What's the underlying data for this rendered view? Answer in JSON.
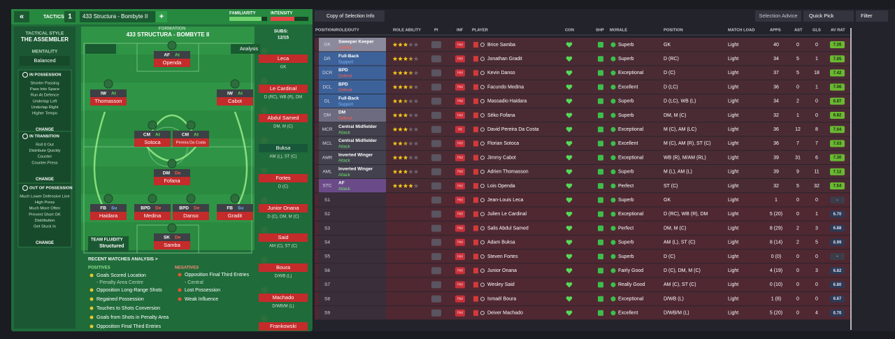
{
  "tactics_bar": {
    "collapse": "«",
    "slot": "1",
    "label": "TACTICS",
    "name": "433 Structura - Bombyte II",
    "add": "+",
    "familiarity": "FAMILIARITY",
    "intensity": "INTENSITY"
  },
  "sidebar": {
    "style_label": "TACTICAL STYLE",
    "style": "THE ASSEMBLER",
    "mentality_label": "MENTALITY",
    "mentality": "Balanced",
    "sections": [
      {
        "title": "IN POSSESSION",
        "items": [
          "Shorter Passing",
          "Pass Into Space",
          "Run At Defence",
          "Underlap Left",
          "Underlap Right",
          "Higher Tempo"
        ],
        "action": "CHANGE"
      },
      {
        "title": "IN TRANSITION",
        "items": [
          "Roll It Out",
          "Distribute Quickly",
          "Counter",
          "Counter-Press"
        ],
        "action": "CHANGE"
      },
      {
        "title": "OUT OF POSSESSION",
        "items": [
          "Much Lower Defensive Line",
          "High Press",
          "Much More Often",
          "Prevent Short GK",
          "Distribution",
          "Get Stuck In"
        ],
        "action": "CHANGE"
      }
    ]
  },
  "pitch": {
    "formation_label": "FORMATION",
    "formation": "433 STRUCTURA - BOMBYTE II",
    "subs_label": "SUBS:",
    "subs_count": "12/15",
    "analysis": "Analysis",
    "fluidity_label": "TEAM FLUIDITY",
    "fluidity": "Structured",
    "positions": [
      {
        "role": "AF",
        "duty": "At",
        "player": "Openda"
      },
      {
        "role": "IW",
        "duty": "At",
        "player": "Thomasson"
      },
      {
        "role": "IW",
        "duty": "At",
        "player": "Cabot"
      },
      {
        "role": "CM",
        "duty": "At",
        "player": "Sotoca"
      },
      {
        "role": "CM",
        "duty": "At",
        "player": "Pereira Da Costa"
      },
      {
        "role": "DM",
        "duty": "De",
        "player": "Fofana"
      },
      {
        "role": "FB",
        "duty": "Su",
        "player": "Haidara"
      },
      {
        "role": "BPD",
        "duty": "De",
        "player": "Medina"
      },
      {
        "role": "BPD",
        "duty": "De",
        "player": "Danso"
      },
      {
        "role": "FB",
        "duty": "Su",
        "player": "Gradit"
      },
      {
        "role": "SK",
        "duty": "De",
        "player": "Samba"
      }
    ]
  },
  "subs": [
    {
      "name": "Leca",
      "position": "GK"
    },
    {
      "name": "Le Cardinal",
      "position": "D (RC), WB (R), DM"
    },
    {
      "name": "Abdul Samed",
      "position": "DM, M (C)"
    },
    {
      "name": "Buksa",
      "position": "AM (L), ST (C)"
    },
    {
      "name": "Fortes",
      "position": "D (C)"
    },
    {
      "name": "Junior Onana",
      "position": "D (C), DM, M (C)"
    },
    {
      "name": "Said",
      "position": "AM (C), ST (C)"
    },
    {
      "name": "Boura",
      "position": "D/WB (L)"
    },
    {
      "name": "Machado",
      "position": "D/WB/M (L)"
    },
    {
      "name": "Frankowski"
    }
  ],
  "analysis": {
    "title": "RECENT MATCHES ANALYSIS >",
    "positives_label": "POSITIVES",
    "positives": [
      "Goals Scored Location",
      "- Penalty Area Centre",
      "Opposition Long-Range Shots",
      "Regained Possession",
      "Touches to Shots Conversion",
      "Goals from Shots in Penalty Area",
      "Opposition Final Third Entries"
    ],
    "negatives_label": "NEGATIVES",
    "negatives": [
      "Opposition Final Third Entries",
      "- Central",
      "Lost Possession",
      "Weak Influence"
    ]
  },
  "toolbar": {
    "view": "Copy of Selection Info",
    "advice": "Selection Advice",
    "quick_pick": "Quick Pick",
    "filter": "Filter"
  },
  "table": {
    "columns": [
      "POSITION/ROLE/DUTY",
      "ROLE ABILITY",
      "PI",
      "INF",
      "PLAYER",
      "CON",
      "SHP",
      "MORALE",
      "POSITION",
      "MATCH LOAD",
      "APPS",
      "AST",
      "GLS",
      "AV RAT"
    ],
    "rows": [
      {
        "slot": "GK",
        "role": "Sweeper Keeper",
        "duty": "Defend",
        "color": "#8b8a9c",
        "role_ability": 3,
        "inf": "Hol",
        "player": "Brice Samba",
        "morale": "Superb",
        "position": "GK",
        "match_load": "Light",
        "apps": "40",
        "ast": 0,
        "gls": 0,
        "av_rat": "7.26"
      },
      {
        "slot": "DR",
        "role": "Full-Back",
        "duty": "Support",
        "color": "#3d6299",
        "role_ability": 3.5,
        "inf": "Hol",
        "player": "Jonathan Gradit",
        "morale": "Superb",
        "position": "D (RC)",
        "match_load": "Light",
        "apps": "34",
        "ast": 5,
        "gls": 1,
        "av_rat": "7.05"
      },
      {
        "slot": "DCR",
        "role": "BPD",
        "duty": "Defend",
        "color": "#3d6299",
        "role_ability": 3.5,
        "inf": "Hol",
        "player": "Kevin Danso",
        "morale": "Exceptional",
        "position": "D (C)",
        "match_load": "Light",
        "apps": "37",
        "ast": 5,
        "gls": 18,
        "av_rat": "7.42"
      },
      {
        "slot": "DCL",
        "role": "BPD",
        "duty": "Defend",
        "color": "#3d6299",
        "role_ability": 3.5,
        "inf": "Hol",
        "player": "Facundo Medina",
        "morale": "Excellent",
        "position": "D (LC)",
        "match_load": "Light",
        "apps": "36",
        "ast": 0,
        "gls": 1,
        "av_rat": "7.06"
      },
      {
        "slot": "DL",
        "role": "Full-Back",
        "duty": "Support",
        "color": "#3d6299",
        "role_ability": 2.5,
        "inf": "Hol",
        "player": "Massadio Haidara",
        "morale": "Superb",
        "position": "D (LC), WB (L)",
        "match_load": "Light",
        "apps": "34",
        "ast": 2,
        "gls": 0,
        "av_rat": "6.87"
      },
      {
        "slot": "DM",
        "role": "DM",
        "duty": "Defend",
        "color": "#6c6b80",
        "role_ability": 3,
        "inf": "Hol",
        "player": "Séko Fofana",
        "morale": "Superb",
        "position": "DM, M (C)",
        "match_load": "Light",
        "apps": "32",
        "ast": 1,
        "gls": 0,
        "av_rat": "6.82"
      },
      {
        "slot": "MCR",
        "role": "Central Midfielder",
        "duty": "Attack",
        "color": "#43414e",
        "role_ability": 3,
        "inf": "Int",
        "player": "David Pereira Da Costa",
        "morale": "Exceptional",
        "position": "M (C), AM (LC)",
        "match_load": "Light",
        "apps": "36",
        "ast": 12,
        "gls": 8,
        "av_rat": "7.04"
      },
      {
        "slot": "MCL",
        "role": "Central Midfielder",
        "duty": "Attack",
        "color": "#43414e",
        "role_ability": 2.5,
        "inf": "Hol",
        "player": "Florian Sotoca",
        "morale": "Excellent",
        "position": "M (C), AM (R), ST (C)",
        "match_load": "Light",
        "apps": "36",
        "ast": 7,
        "gls": 7,
        "av_rat": "7.03"
      },
      {
        "slot": "AMR",
        "role": "Inverted Winger",
        "duty": "Attack",
        "color": "#43414e",
        "role_ability": 3,
        "inf": "Hol",
        "player": "Jimmy Cabot",
        "morale": "Exceptional",
        "position": "WB (R), M/AM (RL)",
        "match_load": "Light",
        "apps": "39",
        "ast": 31,
        "gls": 6,
        "av_rat": "7.30"
      },
      {
        "slot": "AML",
        "role": "Inverted Winger",
        "duty": "Attack",
        "color": "#43414e",
        "role_ability": 3,
        "inf": "Hol",
        "player": "Adrien Thomasson",
        "morale": "Superb",
        "position": "M (L), AM (L)",
        "match_load": "Light",
        "apps": "39",
        "ast": 9,
        "gls": 11,
        "av_rat": "7.12"
      },
      {
        "slot": "STC",
        "role": "AF",
        "duty": "Attack",
        "color": "#6a4b88",
        "role_ability": 4,
        "inf": "Hol",
        "player": "Lois Openda",
        "morale": "Perfect",
        "position": "ST (C)",
        "match_load": "Light",
        "apps": "32",
        "ast": 5,
        "gls": 32,
        "av_rat": "7.54"
      },
      {
        "slot": "S1",
        "inf": "Hol",
        "player": "Jean-Louis Leca",
        "morale": "Superb",
        "position": "GK",
        "match_load": "Light",
        "apps": "1",
        "ast": 0,
        "gls": 0,
        "av_rat": "-"
      },
      {
        "slot": "S2",
        "inf": "Hol",
        "player": "Julien Le Cardinal",
        "morale": "Exceptional",
        "position": "D (RC), WB (R), DM",
        "match_load": "Light",
        "apps": "5 (20)",
        "ast": 0,
        "gls": 1,
        "av_rat": "6.70"
      },
      {
        "slot": "S3",
        "inf": "Hol",
        "player": "Salis Abdul Samed",
        "morale": "Perfect",
        "position": "DM, M (C)",
        "match_load": "Light",
        "apps": "8 (29)",
        "ast": 2,
        "gls": 3,
        "av_rat": "6.88"
      },
      {
        "slot": "S4",
        "inf": "Hol",
        "player": "Adam Buksa",
        "morale": "Superb",
        "position": "AM (L), ST (C)",
        "match_load": "Light",
        "apps": "8 (14)",
        "ast": 2,
        "gls": 5,
        "av_rat": "6.99"
      },
      {
        "slot": "S5",
        "inf": "Hol",
        "player": "Steven Fortes",
        "morale": "Superb",
        "position": "D (C)",
        "match_load": "Light",
        "apps": "0 (0)",
        "ast": 0,
        "gls": 0,
        "av_rat": "-"
      },
      {
        "slot": "S6",
        "inf": "Hol",
        "player": "Junior Onana",
        "morale": "Fairly Good",
        "position": "D (C), DM, M (C)",
        "match_load": "Light",
        "apps": "4 (19)",
        "ast": 0,
        "gls": 3,
        "av_rat": "6.82"
      },
      {
        "slot": "S7",
        "inf": "Hol",
        "player": "Wesley Said",
        "morale": "Really Good",
        "position": "AM (C), ST (C)",
        "match_load": "Light",
        "apps": "0 (10)",
        "ast": 0,
        "gls": 0,
        "av_rat": "6.80"
      },
      {
        "slot": "S8",
        "inf": "Hol",
        "player": "Ismaël Boura",
        "morale": "Exceptional",
        "position": "D/WB (L)",
        "match_load": "Light",
        "apps": "1 (8)",
        "ast": 0,
        "gls": 0,
        "av_rat": "6.67"
      },
      {
        "slot": "S9",
        "inf": "Hol",
        "player": "Deiver Machado",
        "morale": "Excellent",
        "position": "D/WB/M (L)",
        "match_load": "Light",
        "apps": "5 (20)",
        "ast": 0,
        "gls": 4,
        "av_rat": "6.76"
      }
    ]
  }
}
